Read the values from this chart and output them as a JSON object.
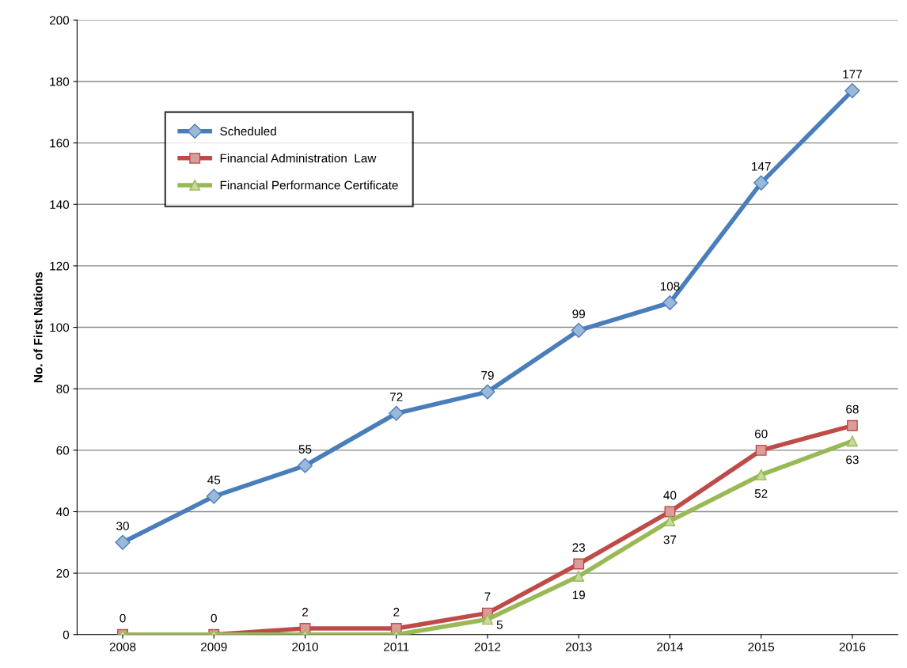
{
  "chart_data": {
    "type": "line",
    "ylabel": "No. of First Nations",
    "categories": [
      "2008",
      "2009",
      "2010",
      "2011",
      "2012",
      "2013",
      "2014",
      "2015",
      "2016"
    ],
    "series": [
      {
        "name": "Scheduled",
        "color": "#4a7ebb",
        "marker": "diamond",
        "values": [
          30,
          45,
          55,
          72,
          79,
          99,
          108,
          147,
          177
        ],
        "value_labels": [
          "30",
          "45",
          "55",
          "72",
          "79",
          "99",
          "108",
          "147",
          "177"
        ]
      },
      {
        "name": "Financial Administration  Law",
        "color": "#be4b48",
        "marker": "square",
        "values": [
          0,
          0,
          2,
          2,
          7,
          23,
          40,
          60,
          68
        ],
        "value_labels": [
          "0",
          "0",
          "2",
          "2",
          "7",
          "23",
          "40",
          "60",
          "68"
        ]
      },
      {
        "name": "Financial Performance Certificate",
        "color": "#98b954",
        "marker": "triangle",
        "values": [
          0,
          0,
          0,
          0,
          5,
          19,
          37,
          52,
          63
        ],
        "value_labels": [
          null,
          null,
          null,
          null,
          "5",
          "19",
          "37",
          "52",
          "63"
        ]
      }
    ],
    "ylim": [
      0,
      200
    ],
    "yticks": [
      0,
      20,
      40,
      60,
      80,
      100,
      120,
      140,
      160,
      180,
      200
    ],
    "grid": "y",
    "legend": "top left",
    "line_style": "solid"
  }
}
